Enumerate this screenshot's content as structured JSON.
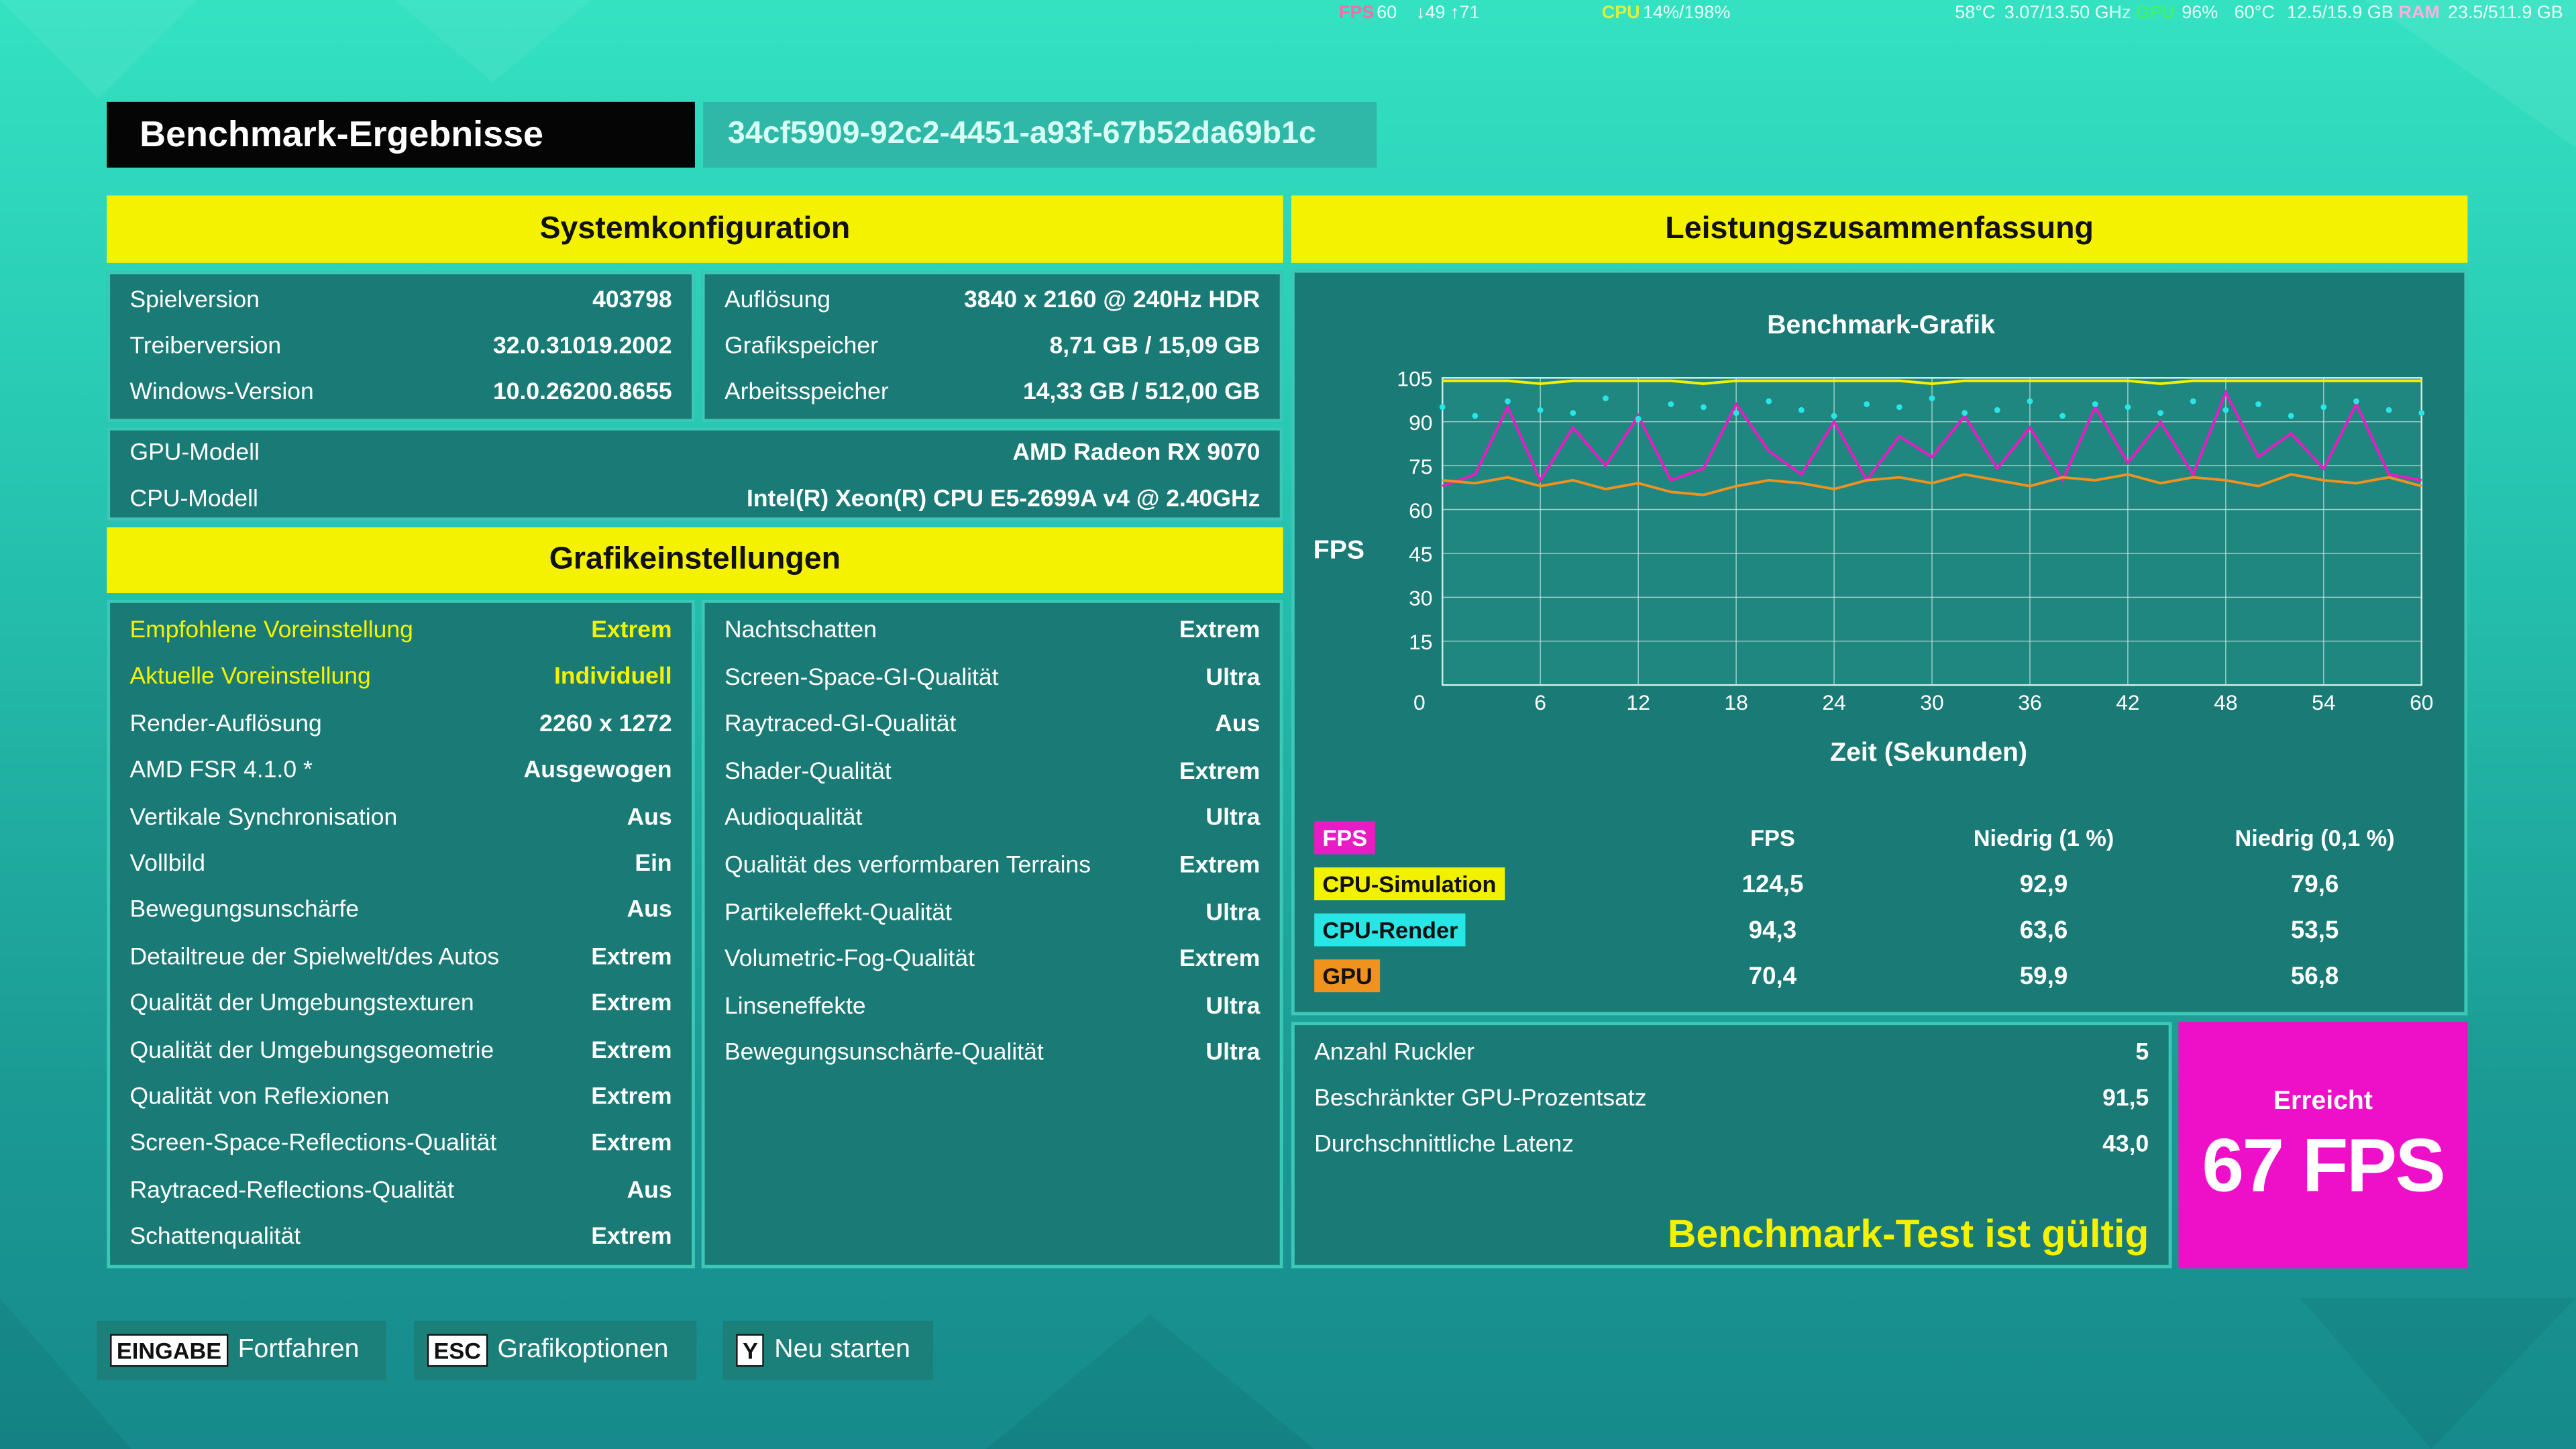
{
  "overlay": {
    "fps_label": "FPS",
    "fps": "60",
    "fps_range": "↓49 ↑71",
    "cpu_label": "CPU",
    "cpu": "14%/198%",
    "cpu_temp": "58°C",
    "cpu_clock": "3.07/13.50 GHz",
    "gpu_label": "GPU",
    "gpu": "96%",
    "gpu_temp": "60°C",
    "gpu_mem": "12.5/15.9 GB",
    "ram_label": "RAM",
    "ram": "23.5/511.9 GB"
  },
  "header": {
    "title": "Benchmark-Ergebnisse",
    "id": "34cf5909-92c2-4451-a93f-67b52da69b1c"
  },
  "system": {
    "title": "Systemkonfiguration",
    "left": [
      {
        "label": "Spielversion",
        "value": "403798"
      },
      {
        "label": "Treiberversion",
        "value": "32.0.31019.2002"
      },
      {
        "label": "Windows-Version",
        "value": "10.0.26200.8655"
      }
    ],
    "right": [
      {
        "label": "Auflösung",
        "value": "3840 x 2160 @ 240Hz HDR"
      },
      {
        "label": "Grafikspeicher",
        "value": "8,71 GB / 15,09 GB"
      },
      {
        "label": "Arbeitsspeicher",
        "value": "14,33 GB / 512,00 GB"
      }
    ],
    "hardware": [
      {
        "label": "GPU-Modell",
        "value": "AMD Radeon RX 9070"
      },
      {
        "label": "CPU-Modell",
        "value": "Intel(R) Xeon(R) CPU E5-2699A v4 @ 2.40GHz"
      }
    ]
  },
  "graphics": {
    "title": "Grafikeinstellungen",
    "left": [
      {
        "label": "Empfohlene Voreinstellung",
        "value": "Extrem"
      },
      {
        "label": "Aktuelle Voreinstellung",
        "value": "Individuell"
      },
      {
        "label": "Render-Auflösung",
        "value": "2260 x 1272"
      },
      {
        "label": "AMD FSR 4.1.0 *",
        "value": "Ausgewogen"
      },
      {
        "label": "Vertikale Synchronisation",
        "value": "Aus"
      },
      {
        "label": "Vollbild",
        "value": "Ein"
      },
      {
        "label": "Bewegungsunschärfe",
        "value": "Aus"
      },
      {
        "label": "Detailtreue der Spielwelt/des Autos",
        "value": "Extrem"
      },
      {
        "label": "Qualität der Umgebungstexturen",
        "value": "Extrem"
      },
      {
        "label": "Qualität der Umgebungsgeometrie",
        "value": "Extrem"
      },
      {
        "label": "Qualität von Reflexionen",
        "value": "Extrem"
      },
      {
        "label": "Screen-Space-Reflections-Qualität",
        "value": "Extrem"
      },
      {
        "label": "Raytraced-Reflections-Qualität",
        "value": "Aus"
      },
      {
        "label": "Schattenqualität",
        "value": "Extrem"
      }
    ],
    "right": [
      {
        "label": "Nachtschatten",
        "value": "Extrem"
      },
      {
        "label": "Screen-Space-GI-Qualität",
        "value": "Ultra"
      },
      {
        "label": "Raytraced-GI-Qualität",
        "value": "Aus"
      },
      {
        "label": "Shader-Qualität",
        "value": "Extrem"
      },
      {
        "label": "Audioqualität",
        "value": "Ultra"
      },
      {
        "label": "Qualität des verformbaren Terrains",
        "value": "Extrem"
      },
      {
        "label": "Partikeleffekt-Qualität",
        "value": "Ultra"
      },
      {
        "label": "Volumetric-Fog-Qualität",
        "value": "Extrem"
      },
      {
        "label": "Linseneffekte",
        "value": "Ultra"
      },
      {
        "label": "Bewegungsunschärfe-Qualität",
        "value": "Ultra"
      }
    ]
  },
  "summary": {
    "title": "Leistungszusammenfassung",
    "chart_data": {
      "type": "line",
      "title": "Benchmark-Grafik",
      "x_label": "Zeit (Sekunden)",
      "y_label": "FPS",
      "xlim": [
        0,
        60
      ],
      "xticks": [
        0,
        6,
        12,
        18,
        24,
        30,
        36,
        42,
        48,
        54,
        60
      ],
      "ylim": [
        0,
        105
      ],
      "yticks": [
        15,
        30,
        45,
        60,
        75,
        90,
        105
      ],
      "grid": true,
      "x": [
        0,
        2,
        4,
        6,
        8,
        10,
        12,
        14,
        16,
        18,
        20,
        22,
        24,
        26,
        28,
        30,
        32,
        34,
        36,
        38,
        40,
        42,
        44,
        46,
        48,
        50,
        52,
        54,
        56,
        58,
        60
      ],
      "series": [
        {
          "name": "FPS",
          "color": "#e81cc4",
          "mode": "line",
          "values": [
            68,
            72,
            95,
            70,
            88,
            75,
            92,
            70,
            74,
            96,
            80,
            72,
            90,
            70,
            85,
            78,
            92,
            74,
            88,
            70,
            95,
            76,
            90,
            72,
            100,
            78,
            86,
            74,
            96,
            72,
            70
          ]
        },
        {
          "name": "CPU-Simulation",
          "color": "#f2f200",
          "mode": "line",
          "values": [
            104,
            104,
            104,
            103,
            104,
            104,
            104,
            104,
            103,
            104,
            104,
            104,
            104,
            104,
            104,
            103,
            104,
            104,
            104,
            104,
            104,
            104,
            103,
            104,
            104,
            104,
            104,
            104,
            104,
            104,
            104
          ]
        },
        {
          "name": "CPU-Render",
          "color": "#28e6e6",
          "mode": "points",
          "values": [
            95,
            92,
            97,
            94,
            93,
            98,
            91,
            96,
            95,
            93,
            97,
            94,
            92,
            96,
            95,
            98,
            93,
            94,
            97,
            92,
            96,
            95,
            93,
            97,
            94,
            96,
            92,
            95,
            97,
            94,
            93
          ]
        },
        {
          "name": "GPU",
          "color": "#f0921e",
          "mode": "line",
          "values": [
            70,
            69,
            71,
            68,
            70,
            67,
            69,
            66,
            65,
            68,
            70,
            69,
            67,
            70,
            71,
            69,
            72,
            70,
            68,
            71,
            70,
            72,
            69,
            71,
            70,
            68,
            72,
            70,
            69,
            71,
            68
          ]
        }
      ]
    },
    "stats": {
      "columns": [
        "FPS",
        "Niedrig (1 %)",
        "Niedrig (0,1 %)"
      ],
      "rows": [
        [
          "124,5",
          "92,9",
          "79,6"
        ],
        [
          "94,3",
          "63,6",
          "53,5"
        ],
        [
          "70,4",
          "59,9",
          "56,8"
        ]
      ]
    },
    "extra": [
      {
        "label": "Anzahl Ruckler",
        "value": "5"
      },
      {
        "label": "Beschränkter GPU-Prozentsatz",
        "value": "91,5"
      },
      {
        "label": "Durchschnittliche Latenz",
        "value": "43,0"
      }
    ],
    "valid": "Benchmark-Test ist gültig",
    "result_label": "Erreicht",
    "result": "67 FPS"
  },
  "footer": [
    {
      "key": "EINGABE",
      "label": "Fortfahren"
    },
    {
      "key": "ESC",
      "label": "Grafikoptionen"
    },
    {
      "key": "Y",
      "label": "Neu starten"
    }
  ]
}
